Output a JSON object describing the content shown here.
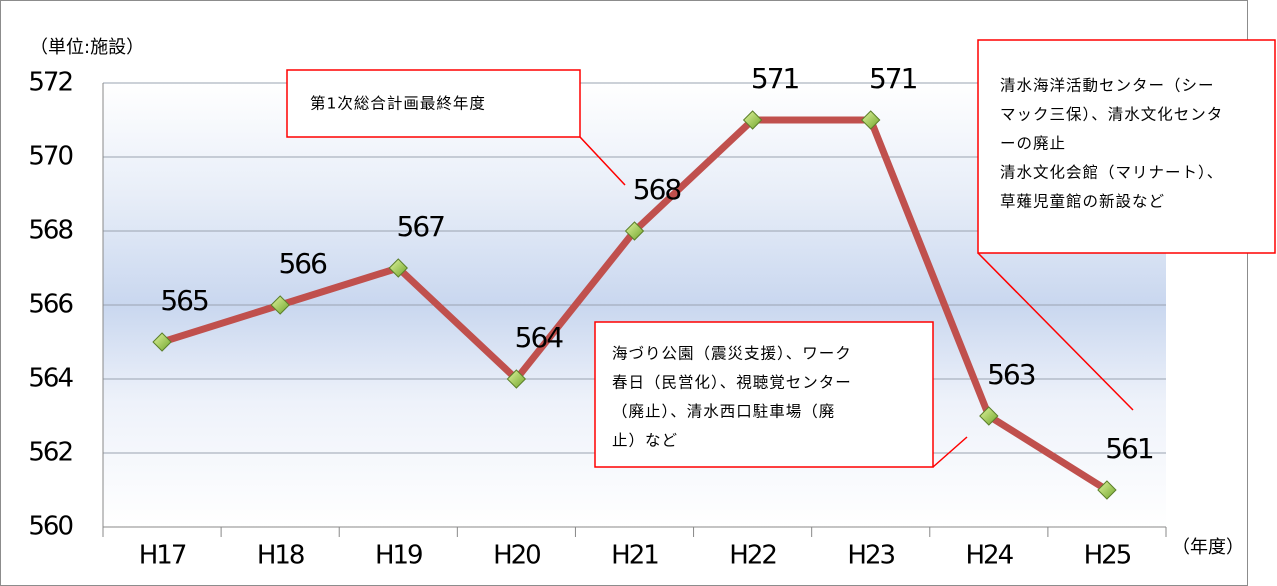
{
  "chart_data": {
    "type": "line",
    "unit_label": "（単位:施設）",
    "x_axis_label": "（年度）",
    "categories": [
      "H17",
      "H18",
      "H19",
      "H20",
      "H21",
      "H22",
      "H23",
      "H24",
      "H25"
    ],
    "series": [
      {
        "color": "#c0504d",
        "values": [
          565,
          566,
          567,
          564,
          568,
          571,
          571,
          563,
          561
        ]
      }
    ],
    "ylim": [
      560,
      572
    ],
    "yticks": [
      560,
      562,
      564,
      566,
      568,
      570,
      572
    ],
    "grid": true,
    "annotations": [
      {
        "lines": [
          "第1次総合計画最終年度"
        ]
      },
      {
        "lines": [
          "清水海洋活動センター（シー",
          "マック三保）、清水文化センタ",
          "ーの廃止",
          "清水文化会館（マリナート）、",
          "草薙児童館の新設など"
        ]
      },
      {
        "lines": [
          "海づり公園（震災支援）、ワーク",
          "春日（民営化）、視聴覚センター",
          "（廃止）、清水西口駐車場（廃",
          "止）など"
        ]
      }
    ]
  }
}
